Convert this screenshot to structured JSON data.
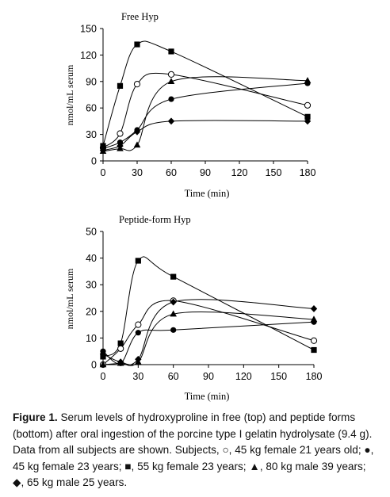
{
  "caption": {
    "figure_label": "Figure 1.",
    "text": "Serum levels of hydroxyproline in free (top) and peptide forms (bottom) after oral ingestion of the porcine type I gelatin hydrolysate (9.4 g). Data from all subjects are shown. Subjects, ○, 45 kg female 21 years old; ●, 45 kg female 23 years; ■, 55 kg female 23 years; ▲, 80 kg male 39 years; ◆, 65 kg male 25 years."
  },
  "chart_data": [
    {
      "type": "line",
      "title": "Free Hyp",
      "xlabel": "Time (min)",
      "ylabel": "nmol/mL serum",
      "xlim": [
        0,
        180
      ],
      "ylim": [
        0,
        150
      ],
      "xticks": [
        0,
        30,
        60,
        90,
        120,
        150,
        180
      ],
      "yticks": [
        0,
        30,
        60,
        90,
        120,
        150
      ],
      "x": [
        0,
        15,
        30,
        60,
        180
      ],
      "grid": false,
      "series": [
        {
          "marker": "circle-open",
          "values": [
            15,
            31,
            87,
            98,
            63
          ]
        },
        {
          "marker": "circle-filled",
          "values": [
            14,
            21,
            35,
            70,
            88
          ]
        },
        {
          "marker": "square-filled",
          "values": [
            17,
            85,
            132,
            124,
            50
          ]
        },
        {
          "marker": "triangle-filled",
          "values": [
            11,
            14,
            18,
            90,
            91
          ]
        },
        {
          "marker": "diamond-filled",
          "values": [
            12,
            17,
            33,
            45,
            45
          ]
        }
      ]
    },
    {
      "type": "line",
      "title": "Peptide-form Hyp",
      "xlabel": "Time (min)",
      "ylabel": "nmol/mL serum",
      "xlim": [
        0,
        180
      ],
      "ylim": [
        0,
        50
      ],
      "xticks": [
        0,
        30,
        60,
        90,
        120,
        150,
        180
      ],
      "yticks": [
        0,
        10,
        20,
        30,
        40,
        50
      ],
      "x": [
        0,
        15,
        30,
        60,
        180
      ],
      "grid": false,
      "series": [
        {
          "marker": "circle-open",
          "values": [
            0,
            6,
            15,
            24,
            9
          ]
        },
        {
          "marker": "circle-filled",
          "values": [
            5,
            0.5,
            12,
            13,
            16
          ]
        },
        {
          "marker": "square-filled",
          "values": [
            3,
            8,
            39,
            33,
            5.5
          ]
        },
        {
          "marker": "triangle-filled",
          "values": [
            0,
            0.5,
            1,
            19,
            17
          ]
        },
        {
          "marker": "diamond-filled",
          "values": [
            4,
            1,
            2,
            23.5,
            21
          ]
        }
      ]
    }
  ]
}
